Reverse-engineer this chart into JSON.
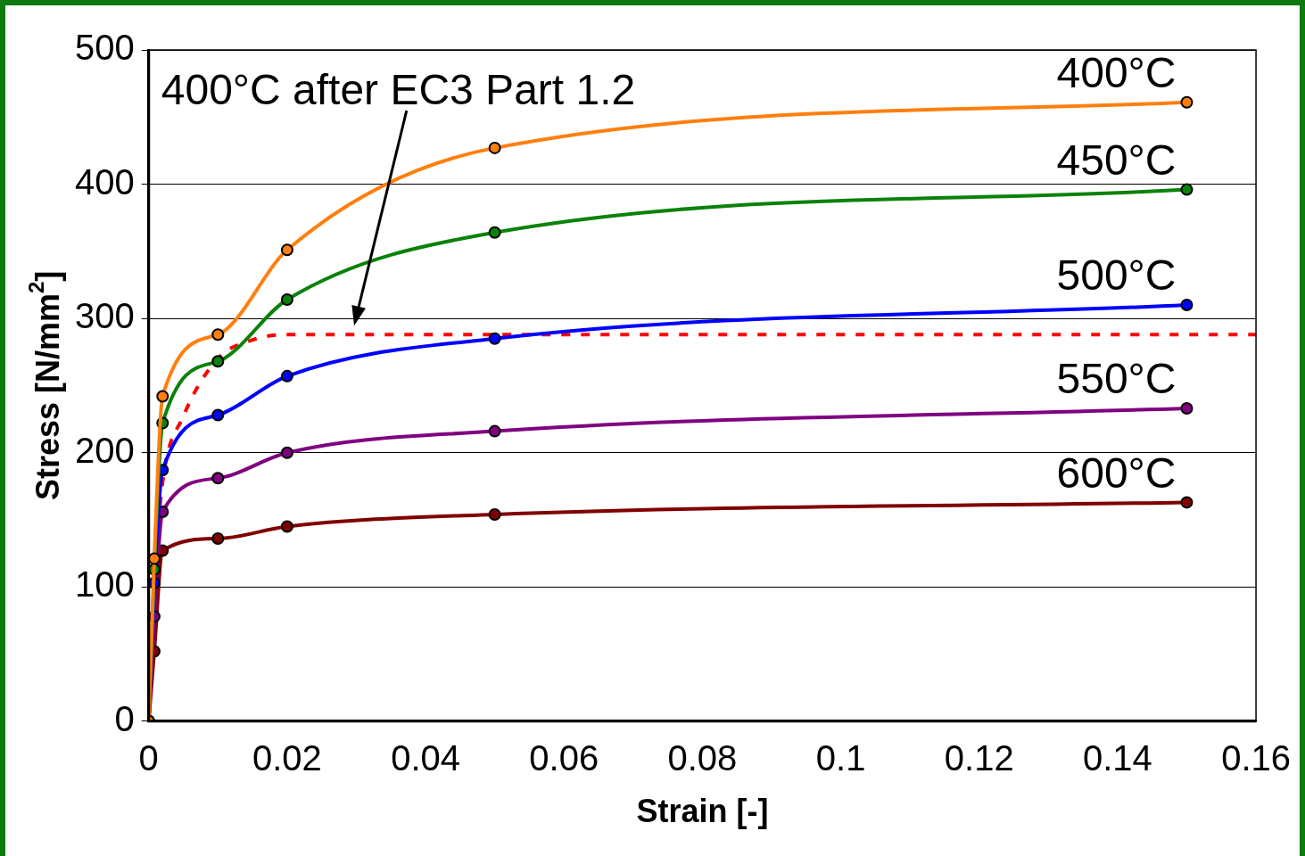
{
  "chart_data": {
    "type": "line",
    "xlabel": "Strain [-]",
    "ylabel": "Stress [N/mm$^{2}$]",
    "xlim": [
      0,
      0.16
    ],
    "xticks": [
      0,
      0.02,
      0.04,
      0.06,
      0.08,
      0.1,
      0.12,
      0.14,
      0.16
    ],
    "ylim": [
      0,
      500
    ],
    "yticks": [
      0,
      100,
      200,
      300,
      400,
      500
    ],
    "grid": "y",
    "legend": false,
    "marker": "circle",
    "line_style": "solid",
    "annotations": [
      "400°C after EC3 Part 1.2"
    ],
    "series": [
      {
        "name": "400°C",
        "color": "#ff7f0e",
        "x": [
          0,
          0.0008,
          0.002,
          0.01,
          0.02,
          0.05,
          0.15
        ],
        "values": [
          0,
          121,
          242,
          288,
          351,
          427,
          461
        ]
      },
      {
        "name": "450°C",
        "color": "#0a820a",
        "x": [
          0,
          0.0008,
          0.002,
          0.01,
          0.02,
          0.05,
          0.15
        ],
        "values": [
          0,
          113,
          222,
          268,
          314,
          364,
          396
        ]
      },
      {
        "name": "500°C",
        "color": "#0000ff",
        "x": [
          0,
          0.0008,
          0.002,
          0.01,
          0.02,
          0.05,
          0.15
        ],
        "values": [
          0,
          103,
          187,
          228,
          257,
          285,
          310
        ]
      },
      {
        "name": "550°C",
        "color": "#800080",
        "x": [
          0,
          0.0008,
          0.002,
          0.01,
          0.02,
          0.05,
          0.15
        ],
        "values": [
          0,
          78,
          156,
          181,
          200,
          216,
          233
        ]
      },
      {
        "name": "600°C",
        "color": "#800000",
        "x": [
          0,
          0.0008,
          0.002,
          0.01,
          0.02,
          0.05,
          0.15
        ],
        "values": [
          0,
          52,
          127,
          136,
          145,
          154,
          163
        ]
      },
      {
        "color": "#ff0000",
        "marker": "none",
        "line_style": "dashed",
        "x": [
          0,
          0.0012,
          0.002,
          0.005,
          0.01,
          0.015,
          0.02,
          0.16
        ],
        "values": [
          0,
          130,
          178,
          227,
          270,
          284,
          288,
          288
        ]
      }
    ]
  }
}
